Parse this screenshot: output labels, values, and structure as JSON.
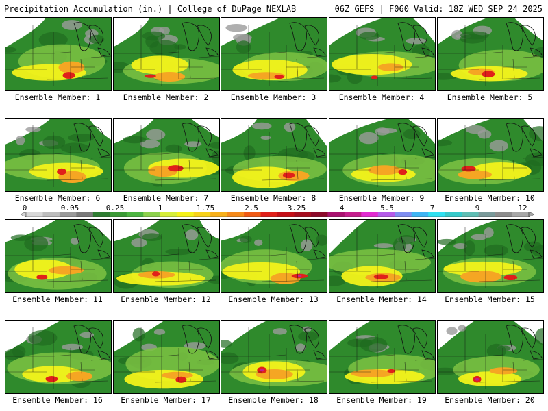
{
  "header": {
    "title_left": "Precipitation Accumulation (in.) | College of DuPage NEXLAB",
    "title_right": "06Z GEFS | F060 Valid: 18Z WED SEP 24 2025"
  },
  "colors": {
    "land_base": "#2f8a2c",
    "dark_green": "#1f6b1f",
    "light_green": "#7cc243",
    "yellow": "#f2f21a",
    "orange": "#f5a623",
    "red": "#e0201a",
    "magenta": "#c41e8c",
    "gray": "#9b9b9b",
    "white": "#ffffff"
  },
  "colorbar": {
    "labels": [
      "0",
      "0.05",
      "0.25",
      "1",
      "1.75",
      "2.5",
      "3.25",
      "4",
      "5.5",
      "7",
      "9",
      "12"
    ],
    "segments": [
      "#d8d8d8",
      "#bdbdbd",
      "#9a9a9a",
      "#7a7a7a",
      "#2e7d32",
      "#3a9a35",
      "#4cb541",
      "#8cd14c",
      "#d6ee3a",
      "#f4f21a",
      "#f7d21a",
      "#f7b01a",
      "#f58a1a",
      "#ef5a14",
      "#e0201a",
      "#c40f18",
      "#a50e20",
      "#8b0a2a",
      "#a8126f",
      "#c41e8c",
      "#e22ad0",
      "#b45ae8",
      "#7e8df0",
      "#3fb4f2",
      "#30e0f0",
      "#36c9c9",
      "#5fbdb3",
      "#7a9a9a",
      "#8d8d8d",
      "#a7a7a7"
    ]
  },
  "members": [
    {
      "label": "Ensemble Member: 1"
    },
    {
      "label": "Ensemble Member: 2"
    },
    {
      "label": "Ensemble Member: 3"
    },
    {
      "label": "Ensemble Member: 4"
    },
    {
      "label": "Ensemble Member: 5"
    },
    {
      "label": "Ensemble Member: 6"
    },
    {
      "label": "Ensemble Member: 7"
    },
    {
      "label": "Ensemble Member: 8"
    },
    {
      "label": "Ensemble Member: 9"
    },
    {
      "label": "Ensemble Member: 10"
    },
    {
      "label": "Ensemble Member: 11"
    },
    {
      "label": "Ensemble Member: 12"
    },
    {
      "label": "Ensemble Member: 13"
    },
    {
      "label": "Ensemble Member: 14"
    },
    {
      "label": "Ensemble Member: 15"
    },
    {
      "label": "Ensemble Member: 16"
    },
    {
      "label": "Ensemble Member: 17"
    },
    {
      "label": "Ensemble Member: 18"
    },
    {
      "label": "Ensemble Member: 19"
    },
    {
      "label": "Ensemble Member: 20"
    }
  ]
}
